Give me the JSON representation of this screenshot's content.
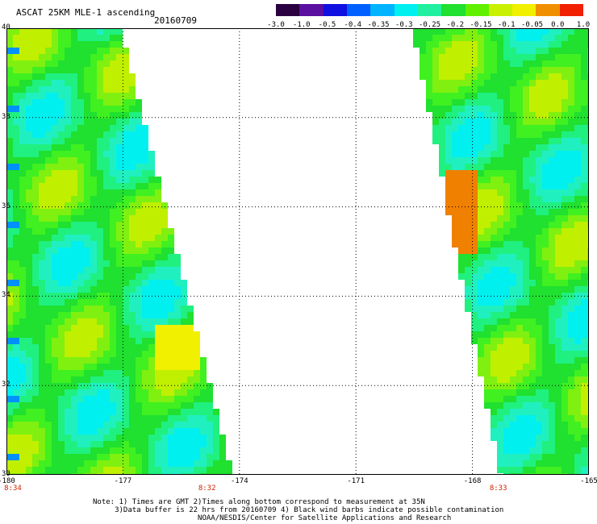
{
  "header": {
    "title": "ASCAT 25KM MLE-1 ascending",
    "date": "20160709"
  },
  "colorbar": {
    "labels": [
      "-3.0",
      "-1.0",
      "-0.5",
      "-0.4",
      "-0.35",
      "-0.3",
      "-0.25",
      "-0.2",
      "-0.15",
      "-0.1",
      "-0.05",
      "0.0",
      "1.0"
    ],
    "colors": [
      "#2a0040",
      "#5a0fa0",
      "#1010e0",
      "#0060ff",
      "#00b4ff",
      "#00f0f0",
      "#20f0a0",
      "#20e030",
      "#60f000",
      "#c8f000",
      "#f0f000",
      "#f09000",
      "#f02000"
    ]
  },
  "map": {
    "lat_labels": [
      "40",
      "38",
      "36",
      "34",
      "32",
      "30"
    ],
    "lon_labels": [
      "-180",
      "-177",
      "-174",
      "-171",
      "-168",
      "-165"
    ],
    "lat_range": [
      30,
      40
    ],
    "lon_range": [
      -180,
      -165
    ],
    "time_labels": [
      {
        "text": "8:34",
        "lon": -180
      },
      {
        "text": "8:32",
        "lon": -175
      },
      {
        "text": "8:33",
        "lon": -167.5
      }
    ],
    "grid": "dotted"
  },
  "notes": {
    "line1": "Note: 1) Times are GMT 2)Times along bottom correspond to measurement at 35N",
    "line2": "     3)Data buffer is 22 hrs from 20160709 4) Black wind barbs indicate possible contamination",
    "line3": "                        NOAA/NESDIS/Center for Satellite Applications and Research"
  }
}
